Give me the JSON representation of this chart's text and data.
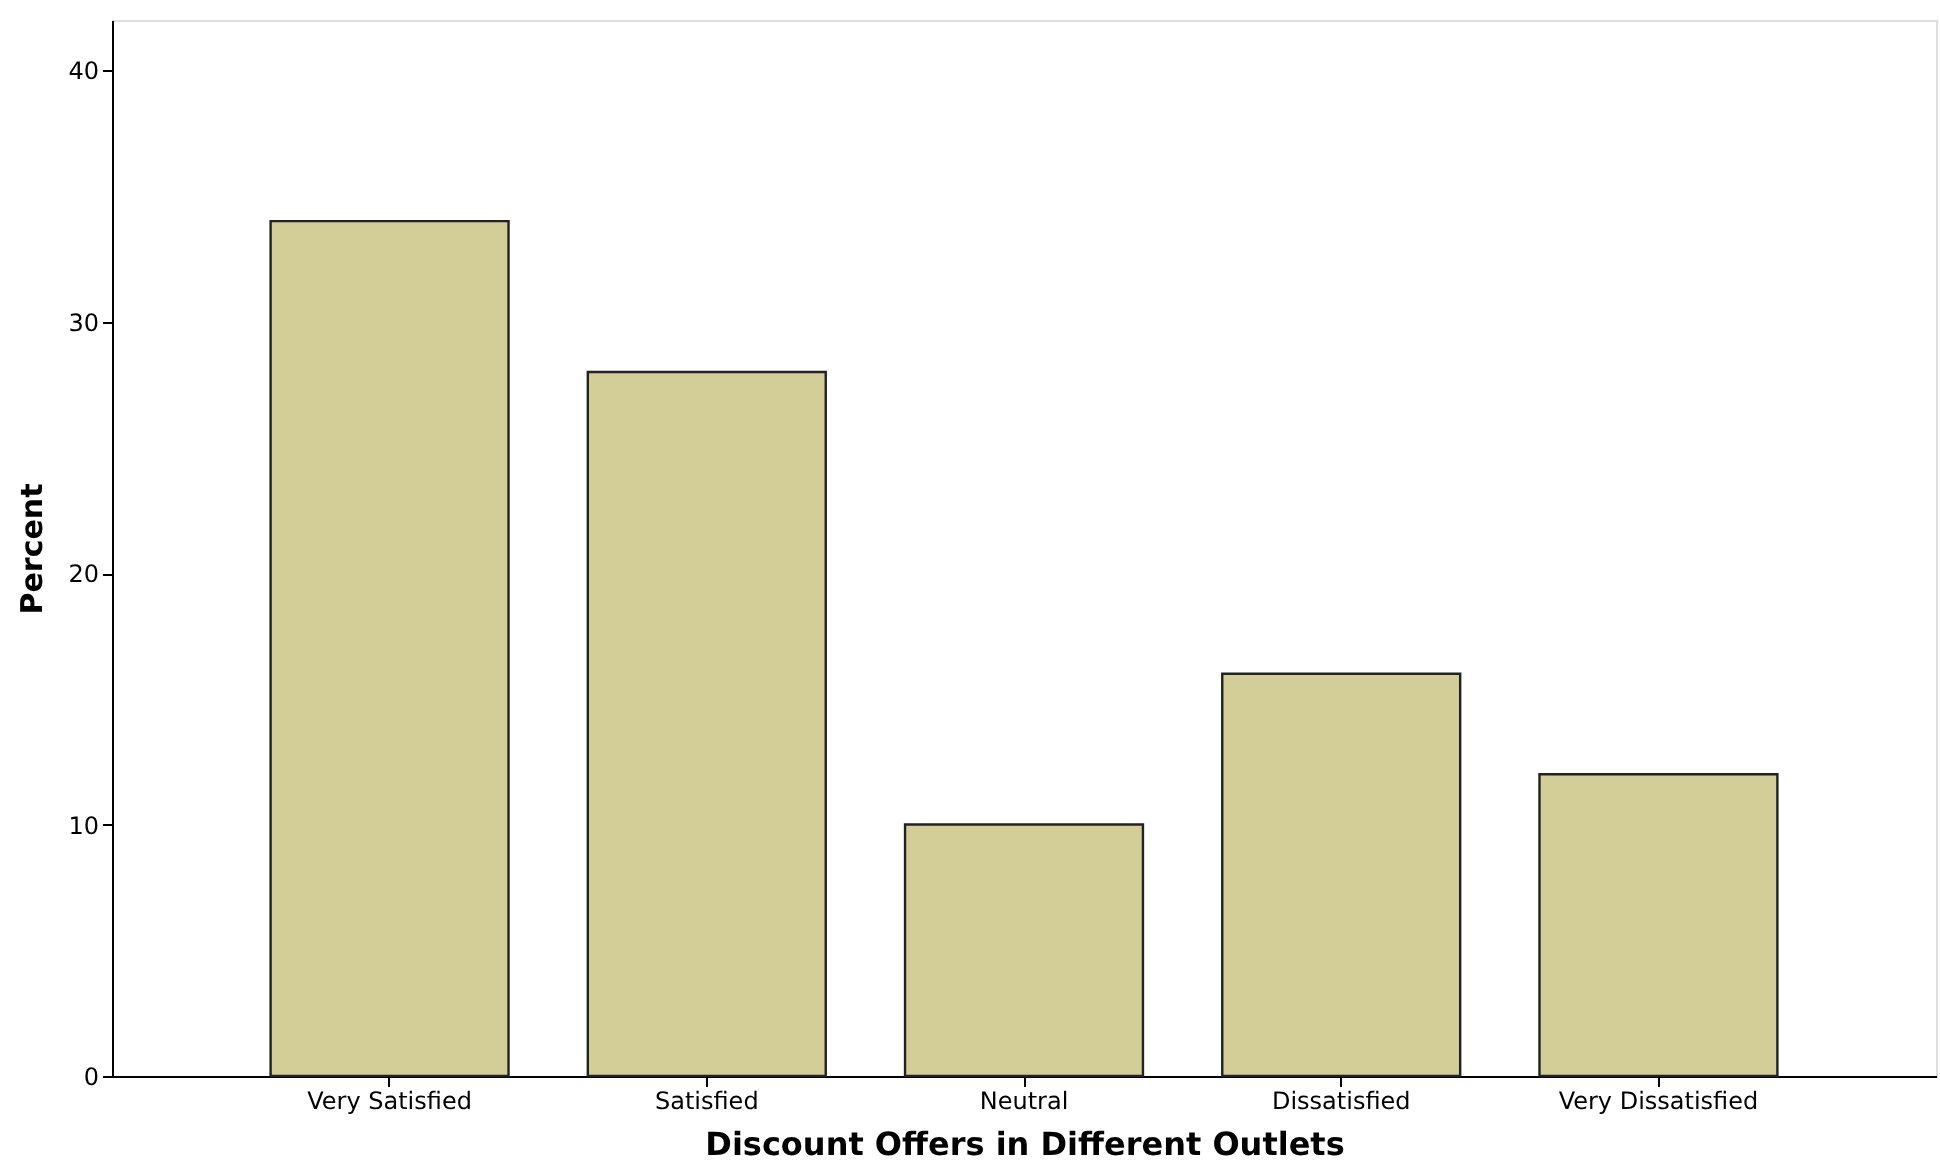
{
  "chart_data": {
    "type": "bar",
    "xlabel": "Discount Offers in Different Outlets",
    "ylabel": "Percent",
    "categories": [
      "Very Satisfied",
      "Satisfied",
      "Neutral",
      "Dissatisfied",
      "Very Dissatisfied"
    ],
    "values": [
      34,
      28,
      10,
      16,
      12
    ],
    "color": "#d3ce97",
    "ylim": [
      0,
      42
    ],
    "yticks": [
      0,
      10,
      20,
      30,
      40
    ],
    "grid": false
  }
}
